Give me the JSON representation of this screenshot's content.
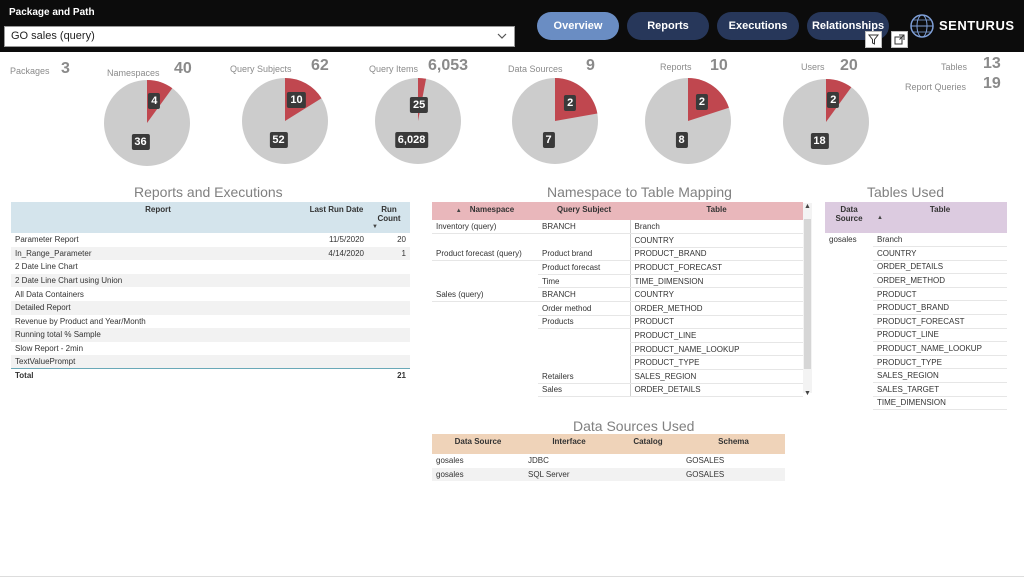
{
  "header": {
    "package_label": "Package and Path",
    "package_value": "GO sales (query)",
    "nav": [
      "Overview",
      "Reports",
      "Executions",
      "Relationships"
    ],
    "logo_text": "SENTURUS"
  },
  "kpis": {
    "packages": {
      "label": "Packages",
      "value": "3"
    },
    "namespaces": {
      "label": "Namespaces",
      "value": "40"
    },
    "query_subjects": {
      "label": "Query Subjects",
      "value": "62"
    },
    "query_items": {
      "label": "Query Items",
      "value": "6,053"
    },
    "data_sources": {
      "label": "Data Sources",
      "value": "9"
    },
    "reports": {
      "label": "Reports",
      "value": "10"
    },
    "users": {
      "label": "Users",
      "value": "20"
    },
    "tables": {
      "label": "Tables",
      "value": "13"
    },
    "report_queries": {
      "label": "Report Queries",
      "value": "19"
    }
  },
  "pies": [
    {
      "name": "namespaces",
      "highlight": 4,
      "rest": 36,
      "highlight_label": "4",
      "rest_label": "36"
    },
    {
      "name": "query-subjects",
      "highlight": 10,
      "rest": 52,
      "highlight_label": "10",
      "rest_label": "52"
    },
    {
      "name": "query-items",
      "highlight": 25,
      "rest": 6028,
      "highlight_label": "25",
      "rest_label": "6,028"
    },
    {
      "name": "data-sources",
      "highlight": 2,
      "rest": 7,
      "highlight_label": "2",
      "rest_label": "7"
    },
    {
      "name": "reports",
      "highlight": 2,
      "rest": 8,
      "highlight_label": "2",
      "rest_label": "8"
    },
    {
      "name": "users",
      "highlight": 2,
      "rest": 18,
      "highlight_label": "2",
      "rest_label": "18"
    }
  ],
  "colors": {
    "highlight": "#c0474f",
    "rest": "#cccccc"
  },
  "reports_exec": {
    "title": "Reports and Executions",
    "headers": [
      "Report",
      "Last Run Date",
      "Run Count"
    ],
    "rows": [
      [
        "Parameter Report",
        "11/5/2020",
        "20"
      ],
      [
        "In_Range_Parameter",
        "4/14/2020",
        "1"
      ],
      [
        "2 Date Line Chart",
        "",
        ""
      ],
      [
        "2 Date Line Chart using Union",
        "",
        ""
      ],
      [
        "All Data Containers",
        "",
        ""
      ],
      [
        "Detailed Report",
        "",
        ""
      ],
      [
        "Revenue by Product and Year/Month",
        "",
        ""
      ],
      [
        "Running total % Sample",
        "",
        ""
      ],
      [
        "Slow Report - 2min",
        "",
        ""
      ],
      [
        "TextValuePrompt",
        "",
        ""
      ]
    ],
    "total_label": "Total",
    "total_value": "21"
  },
  "ns_table": {
    "title": "Namespace to Table Mapping",
    "headers": [
      "Namespace",
      "Query Subject",
      "Table"
    ],
    "rows": [
      [
        "Inventory (query)",
        "BRANCH",
        "Branch"
      ],
      [
        "",
        "",
        "COUNTRY"
      ],
      [
        "Product forecast (query)",
        "Product brand",
        "PRODUCT_BRAND"
      ],
      [
        "",
        "Product forecast",
        "PRODUCT_FORECAST"
      ],
      [
        "",
        "Time",
        "TIME_DIMENSION"
      ],
      [
        "Sales (query)",
        "BRANCH",
        "COUNTRY"
      ],
      [
        "",
        "Order method",
        "ORDER_METHOD"
      ],
      [
        "",
        "Products",
        "PRODUCT"
      ],
      [
        "",
        "",
        "PRODUCT_LINE"
      ],
      [
        "",
        "",
        "PRODUCT_NAME_LOOKUP"
      ],
      [
        "",
        "",
        "PRODUCT_TYPE"
      ],
      [
        "",
        "Retailers",
        "SALES_REGION"
      ],
      [
        "",
        "Sales",
        "ORDER_DETAILS"
      ]
    ]
  },
  "tables_used": {
    "title": "Tables Used",
    "headers": [
      "Data Source",
      "Table"
    ],
    "datasource": "gosales",
    "tables": [
      "Branch",
      "COUNTRY",
      "ORDER_DETAILS",
      "ORDER_METHOD",
      "PRODUCT",
      "PRODUCT_BRAND",
      "PRODUCT_FORECAST",
      "PRODUCT_LINE",
      "PRODUCT_NAME_LOOKUP",
      "PRODUCT_TYPE",
      "SALES_REGION",
      "SALES_TARGET",
      "TIME_DIMENSION"
    ]
  },
  "data_sources_used": {
    "title": "Data Sources Used",
    "headers": [
      "Data Source",
      "Interface",
      "Catalog",
      "Schema"
    ],
    "rows": [
      [
        "gosales",
        "JDBC",
        "",
        "GOSALES"
      ],
      [
        "gosales",
        "SQL Server",
        "",
        "GOSALES"
      ]
    ]
  }
}
